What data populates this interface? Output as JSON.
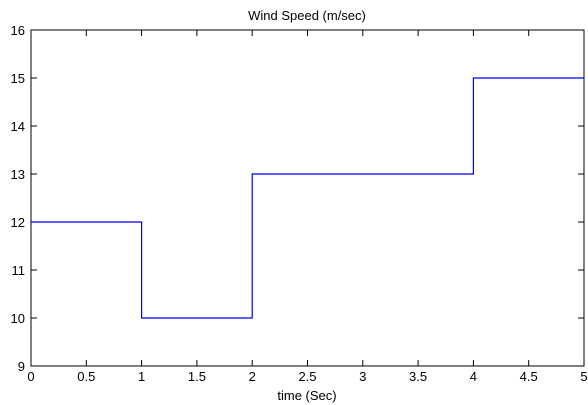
{
  "chart_data": {
    "type": "line",
    "step": "post",
    "title": "Wind Speed (m/sec)",
    "xlabel": "time (Sec)",
    "ylabel": "",
    "xlim": [
      0,
      5
    ],
    "ylim": [
      9,
      16
    ],
    "xticks": [
      0,
      0.5,
      1,
      1.5,
      2,
      2.5,
      3,
      3.5,
      4,
      4.5,
      5
    ],
    "yticks": [
      9,
      10,
      11,
      12,
      13,
      14,
      15,
      16
    ],
    "xtick_labels": [
      "0",
      "0.5",
      "1",
      "1.5",
      "2",
      "2.5",
      "3",
      "3.5",
      "4",
      "4.5",
      "5"
    ],
    "ytick_labels": [
      "9",
      "10",
      "11",
      "12",
      "13",
      "14",
      "15",
      "16"
    ],
    "grid": false,
    "series": [
      {
        "color": "#0000ff",
        "x": [
          0,
          1,
          2,
          4,
          5
        ],
        "y": [
          12,
          10,
          13,
          15,
          15
        ]
      }
    ]
  }
}
